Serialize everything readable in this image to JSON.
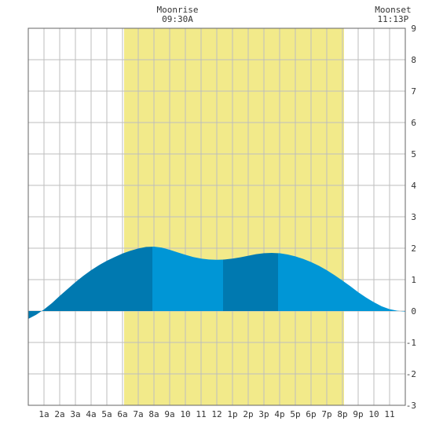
{
  "chart_data": {
    "type": "area",
    "x_tick_labels": [
      "1a",
      "2a",
      "3a",
      "4a",
      "5a",
      "6a",
      "7a",
      "8a",
      "9a",
      "10",
      "11",
      "12",
      "1p",
      "2p",
      "3p",
      "4p",
      "5p",
      "6p",
      "7p",
      "8p",
      "9p",
      "10",
      "11"
    ],
    "y_ticks": [
      -3,
      -2,
      -1,
      0,
      1,
      2,
      3,
      4,
      5,
      6,
      7,
      8,
      9
    ],
    "xlim": [
      0,
      24
    ],
    "ylim": [
      -3,
      9
    ],
    "grid": true,
    "daylight_band": {
      "start_hour": 6.1,
      "end_hour": 20.1
    },
    "annotations": [
      {
        "label": "Moonrise",
        "time": "09:30A",
        "hour": 9.5
      },
      {
        "label": "Moonset",
        "time": "11:13P",
        "hour": 23.22
      }
    ],
    "series": [
      {
        "x": [
          0,
          0.5,
          1,
          1.5,
          2,
          2.5,
          3,
          3.5,
          4,
          4.5,
          5,
          5.5,
          6,
          6.5,
          7,
          7.5,
          8,
          8.5,
          9,
          9.5,
          10,
          10.5,
          11,
          11.5,
          12,
          12.5,
          13,
          13.5,
          14,
          14.5,
          15,
          15.5,
          16,
          16.5,
          17,
          17.5,
          18,
          18.5,
          19,
          19.5,
          20,
          20.5,
          21,
          21.5,
          22,
          22.5,
          23,
          23.5,
          24
        ],
        "y": [
          -0.25,
          -0.12,
          0.05,
          0.25,
          0.48,
          0.7,
          0.92,
          1.12,
          1.3,
          1.46,
          1.6,
          1.72,
          1.83,
          1.92,
          1.99,
          2.04,
          2.05,
          2.02,
          1.95,
          1.87,
          1.79,
          1.72,
          1.67,
          1.64,
          1.63,
          1.64,
          1.67,
          1.71,
          1.76,
          1.81,
          1.84,
          1.85,
          1.84,
          1.8,
          1.74,
          1.66,
          1.56,
          1.44,
          1.3,
          1.14,
          0.97,
          0.79,
          0.6,
          0.43,
          0.28,
          0.15,
          0.06,
          0.01,
          -0.02
        ]
      }
    ],
    "colors": {
      "band": "#f2ea8a",
      "fill_light": "#0096d6",
      "fill_dark": "#0079b0",
      "grid": "#bdbdbd"
    },
    "fill_segments": [
      {
        "from": 0,
        "to": 7.9,
        "shade": "dark"
      },
      {
        "from": 7.9,
        "to": 12.4,
        "shade": "light"
      },
      {
        "from": 12.4,
        "to": 15.9,
        "shade": "dark"
      },
      {
        "from": 15.9,
        "to": 24,
        "shade": "light"
      }
    ]
  }
}
